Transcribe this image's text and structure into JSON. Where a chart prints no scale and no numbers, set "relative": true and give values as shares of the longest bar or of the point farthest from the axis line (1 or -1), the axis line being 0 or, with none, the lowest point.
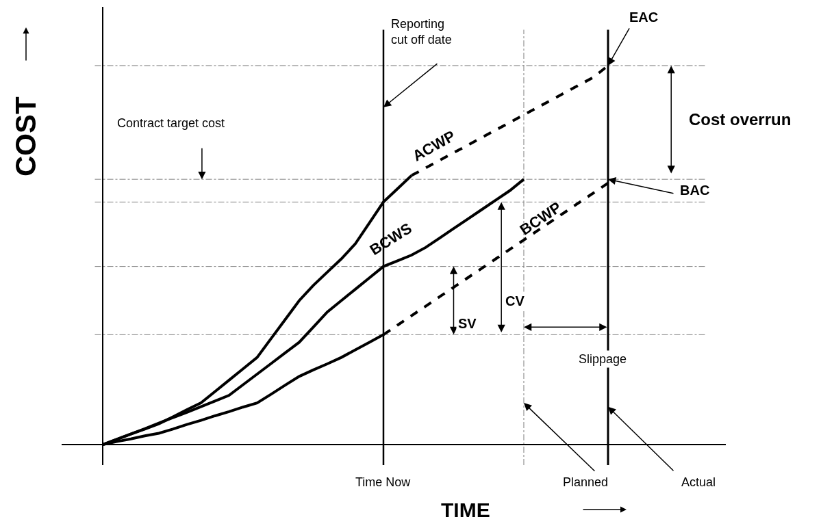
{
  "chart_data": {
    "type": "line",
    "relative": true,
    "xlabel": "TIME",
    "ylabel": "COST",
    "legend": false,
    "grid": false,
    "categories": [
      null,
      null,
      null,
      null,
      null,
      null,
      null,
      null,
      null,
      null,
      null,
      null,
      null,
      null,
      null,
      null,
      null,
      null,
      null,
      null,
      null,
      null,
      null,
      null,
      null,
      null,
      null,
      null,
      null,
      null,
      null,
      null,
      null,
      null,
      null,
      null,
      null
    ],
    "series": [
      {
        "color": "#000000",
        "line_style": "solid",
        "values": [
          0,
          0.014,
          0.028,
          0.041,
          0.055,
          0.073,
          0.092,
          0.11,
          0.14,
          0.17,
          0.2,
          0.23,
          0.28,
          0.33,
          0.38,
          0.42,
          0.455,
          0.49,
          0.53,
          0.585,
          0.64,
          0.675,
          0.71,
          null,
          null,
          null,
          null,
          null,
          null,
          null,
          null,
          null,
          null,
          null,
          null,
          null,
          null
        ]
      },
      {
        "name": "ACWP",
        "color": "#000000",
        "line_style": "dashed",
        "values": [
          null,
          null,
          null,
          null,
          null,
          null,
          null,
          null,
          null,
          null,
          null,
          null,
          null,
          null,
          null,
          null,
          null,
          null,
          null,
          null,
          null,
          null,
          0.71,
          0.73,
          0.75,
          0.77,
          0.79,
          0.81,
          0.83,
          0.85,
          0.87,
          0.89,
          0.91,
          0.93,
          0.95,
          0.97,
          1.0
        ]
      },
      {
        "name": "BCWS",
        "color": "#000000",
        "line_style": "solid",
        "values": [
          0,
          0.014,
          0.028,
          0.042,
          0.057,
          0.071,
          0.085,
          0.1,
          0.115,
          0.13,
          0.158,
          0.186,
          0.214,
          0.242,
          0.27,
          0.31,
          0.35,
          0.38,
          0.41,
          0.44,
          0.47,
          0.485,
          0.5,
          0.52,
          0.545,
          0.57,
          0.595,
          0.62,
          0.645,
          0.67,
          0.7,
          null,
          null,
          null,
          null,
          null,
          null
        ]
      },
      {
        "color": "#000000",
        "line_style": "solid",
        "values": [
          0,
          0.008,
          0.015,
          0.023,
          0.03,
          0.041,
          0.053,
          0.064,
          0.076,
          0.087,
          0.099,
          0.11,
          0.133,
          0.157,
          0.18,
          0.197,
          0.213,
          0.23,
          0.25,
          0.27,
          0.29,
          null,
          null,
          null,
          null,
          null,
          null,
          null,
          null,
          null,
          null,
          null,
          null,
          null,
          null,
          null,
          null
        ]
      },
      {
        "name": "BCWP",
        "color": "#000000",
        "line_style": "dashed",
        "values": [
          null,
          null,
          null,
          null,
          null,
          null,
          null,
          null,
          null,
          null,
          null,
          null,
          null,
          null,
          null,
          null,
          null,
          null,
          null,
          null,
          0.29,
          0.315,
          0.34,
          0.365,
          0.39,
          0.415,
          0.44,
          0.465,
          0.49,
          0.515,
          0.54,
          0.565,
          0.59,
          0.615,
          0.64,
          0.665,
          0.69
        ]
      }
    ],
    "ref_lines": [
      {
        "axis": "y",
        "value": 1.0,
        "color": "#808080",
        "line_style": "dotted"
      },
      {
        "axis": "y",
        "value": 0.7,
        "color": "#808080",
        "line_style": "dotted"
      },
      {
        "axis": "y",
        "value": 0.64,
        "color": "#808080",
        "line_style": "dotted"
      },
      {
        "axis": "y",
        "value": 0.47,
        "color": "#808080",
        "line_style": "dotted"
      },
      {
        "axis": "y",
        "value": 0.29,
        "color": "#808080",
        "line_style": "dotted"
      }
    ],
    "annotations": [
      "Reporting\ncut off date",
      "Contract target cost",
      "EAC",
      "BAC",
      "Cost overrun",
      "CV",
      "SV",
      "Slippage",
      "Planned",
      "Actual",
      "Time Now"
    ]
  }
}
